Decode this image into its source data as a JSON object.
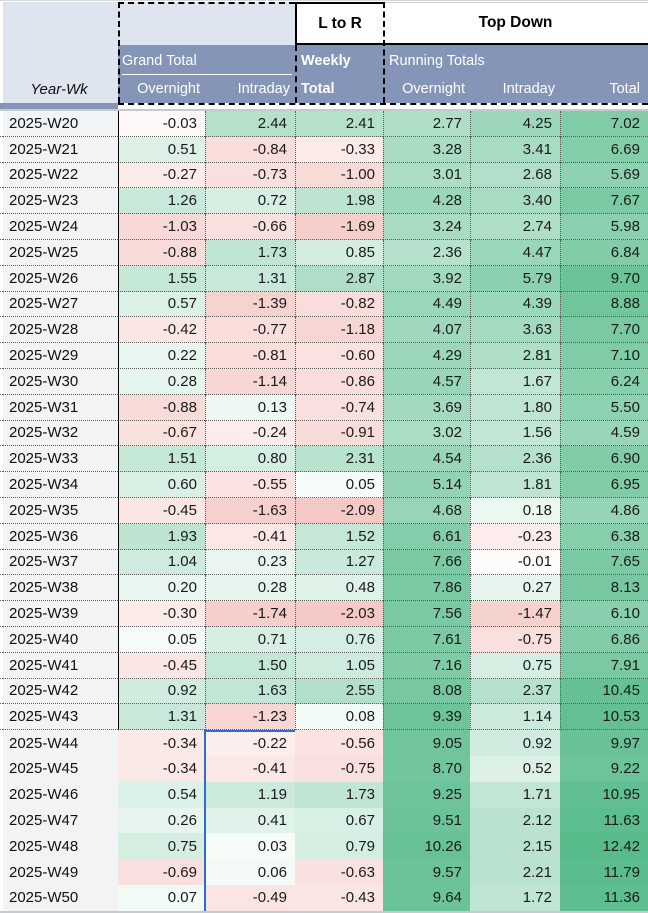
{
  "header": {
    "ltor": "L to R",
    "top_down": "Top Down",
    "grand_total": "Grand Total",
    "weekly": "Weekly",
    "running_totals": "Running Totals",
    "year_wk": "Year-Wk",
    "columns": [
      "Overnight",
      "Intraday",
      "Total",
      "Overnight",
      "Intraday",
      "Total"
    ]
  },
  "colors": {
    "header_slate": "#8595b7",
    "header_light": "#dee4f0",
    "row_label_bg": "#f2f3f5",
    "positive": "#57bb8a",
    "negative": "#e67c73",
    "selection_blue": "#2f6bd7"
  },
  "table": {
    "color_scale": {
      "max_abs": 12.42,
      "curve": "sqrt",
      "bordered_rows_through": "2025-W43"
    },
    "rows": [
      {
        "week": "2025-W20",
        "values": [
          -0.03,
          2.44,
          2.41,
          2.77,
          4.25,
          7.02
        ]
      },
      {
        "week": "2025-W21",
        "values": [
          0.51,
          -0.84,
          -0.33,
          3.28,
          3.41,
          6.69
        ]
      },
      {
        "week": "2025-W22",
        "values": [
          -0.27,
          -0.73,
          -1.0,
          3.01,
          2.68,
          5.69
        ]
      },
      {
        "week": "2025-W23",
        "values": [
          1.26,
          0.72,
          1.98,
          4.28,
          3.4,
          7.67
        ]
      },
      {
        "week": "2025-W24",
        "values": [
          -1.03,
          -0.66,
          -1.69,
          3.24,
          2.74,
          5.98
        ]
      },
      {
        "week": "2025-W25",
        "values": [
          -0.88,
          1.73,
          0.85,
          2.36,
          4.47,
          6.84
        ]
      },
      {
        "week": "2025-W26",
        "values": [
          1.55,
          1.31,
          2.87,
          3.92,
          5.79,
          9.7
        ]
      },
      {
        "week": "2025-W27",
        "values": [
          0.57,
          -1.39,
          -0.82,
          4.49,
          4.39,
          8.88
        ]
      },
      {
        "week": "2025-W28",
        "values": [
          -0.42,
          -0.77,
          -1.18,
          4.07,
          3.63,
          7.7
        ]
      },
      {
        "week": "2025-W29",
        "values": [
          0.22,
          -0.81,
          -0.6,
          4.29,
          2.81,
          7.1
        ]
      },
      {
        "week": "2025-W30",
        "values": [
          0.28,
          -1.14,
          -0.86,
          4.57,
          1.67,
          6.24
        ]
      },
      {
        "week": "2025-W31",
        "values": [
          -0.88,
          0.13,
          -0.74,
          3.69,
          1.8,
          5.5
        ]
      },
      {
        "week": "2025-W32",
        "values": [
          -0.67,
          -0.24,
          -0.91,
          3.02,
          1.56,
          4.59
        ]
      },
      {
        "week": "2025-W33",
        "values": [
          1.51,
          0.8,
          2.31,
          4.54,
          2.36,
          6.9
        ]
      },
      {
        "week": "2025-W34",
        "values": [
          0.6,
          -0.55,
          0.05,
          5.14,
          1.81,
          6.95
        ]
      },
      {
        "week": "2025-W35",
        "values": [
          -0.45,
          -1.63,
          -2.09,
          4.68,
          0.18,
          4.86
        ]
      },
      {
        "week": "2025-W36",
        "values": [
          1.93,
          -0.41,
          1.52,
          6.61,
          -0.23,
          6.38
        ]
      },
      {
        "week": "2025-W37",
        "values": [
          1.04,
          0.23,
          1.27,
          7.66,
          -0.01,
          7.65
        ]
      },
      {
        "week": "2025-W38",
        "values": [
          0.2,
          0.28,
          0.48,
          7.86,
          0.27,
          8.13
        ]
      },
      {
        "week": "2025-W39",
        "values": [
          -0.3,
          -1.74,
          -2.03,
          7.56,
          -1.47,
          6.1
        ]
      },
      {
        "week": "2025-W40",
        "values": [
          0.05,
          0.71,
          0.76,
          7.61,
          -0.75,
          6.86
        ]
      },
      {
        "week": "2025-W41",
        "values": [
          -0.45,
          1.5,
          1.05,
          7.16,
          0.75,
          7.91
        ]
      },
      {
        "week": "2025-W42",
        "values": [
          0.92,
          1.63,
          2.55,
          8.08,
          2.37,
          10.45
        ]
      },
      {
        "week": "2025-W43",
        "values": [
          1.31,
          -1.23,
          0.08,
          9.39,
          1.14,
          10.53
        ]
      },
      {
        "week": "2025-W44",
        "values": [
          -0.34,
          -0.22,
          -0.56,
          9.05,
          0.92,
          9.97
        ]
      },
      {
        "week": "2025-W45",
        "values": [
          -0.34,
          -0.41,
          -0.75,
          8.7,
          0.52,
          9.22
        ]
      },
      {
        "week": "2025-W46",
        "values": [
          0.54,
          1.19,
          1.73,
          9.25,
          1.71,
          10.95
        ]
      },
      {
        "week": "2025-W47",
        "values": [
          0.26,
          0.41,
          0.67,
          9.51,
          2.12,
          11.63
        ]
      },
      {
        "week": "2025-W48",
        "values": [
          0.75,
          0.03,
          0.79,
          10.26,
          2.15,
          12.42
        ]
      },
      {
        "week": "2025-W49",
        "values": [
          -0.69,
          0.06,
          -0.63,
          9.57,
          2.21,
          11.79
        ]
      },
      {
        "week": "2025-W50",
        "values": [
          0.07,
          -0.49,
          -0.43,
          9.64,
          1.72,
          11.36
        ]
      }
    ]
  }
}
